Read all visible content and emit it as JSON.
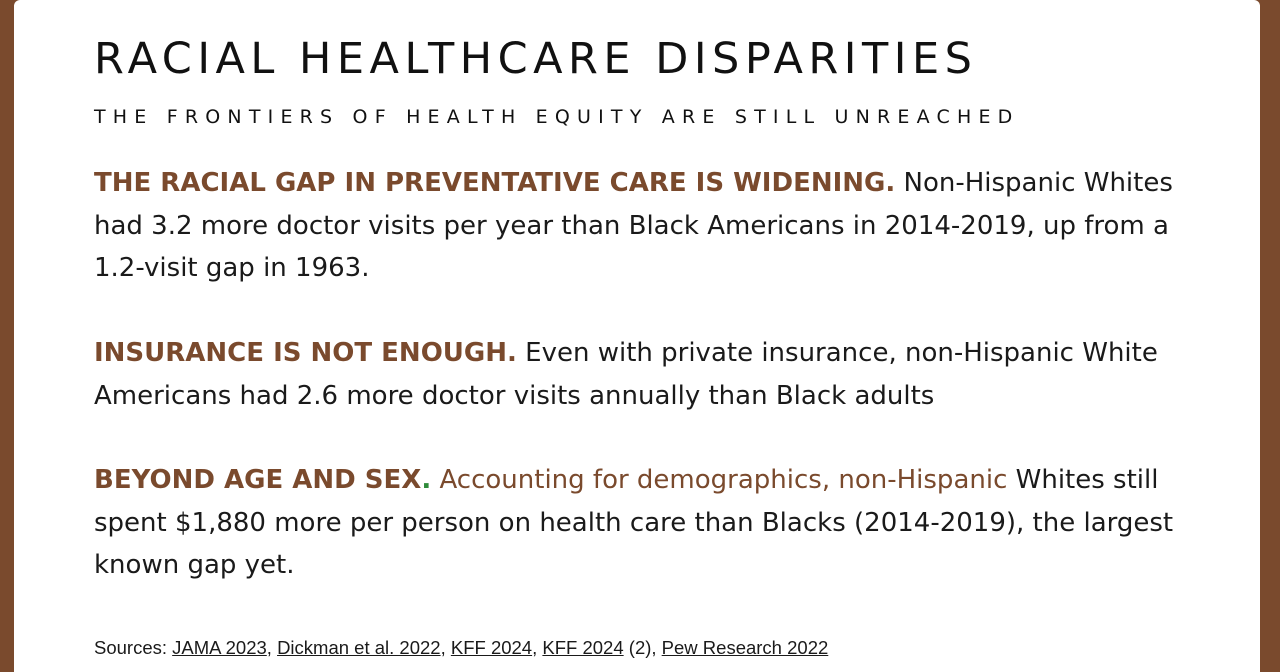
{
  "title": "RACIAL HEALTHCARE DISPARITIES",
  "subtitle": "THE FRONTIERS OF HEALTH EQUITY ARE STILL UNREACHED",
  "sections": [
    {
      "lead": "THE RACIAL GAP IN PREVENTATIVE CARE IS WIDENING.",
      "body": " Non-Hispanic Whites had 3.2 more doctor visits per year than Black Americans in 2014-2019, up from a 1.2-visit gap in 1963."
    },
    {
      "lead": "INSURANCE IS NOT ENOUGH.",
      "body": " Even with private insurance, non-Hispanic White Americans had 2.6 more doctor visits annually than Black adults"
    },
    {
      "lead": "BEYOND AGE AND SEX",
      "lead_period": ".",
      "body_highlight": " Accounting for demographics, non-Hispanic",
      "body": " Whites still spent $1,880 more per person on health care than Blacks (2014-2019), the largest known gap yet."
    }
  ],
  "sources": {
    "label": "Sources: ",
    "links": [
      "JAMA 2023",
      "Dickman et al. 2022",
      "KFF 2024",
      "KFF 2024",
      "Pew Research 2022"
    ],
    "sep": ", ",
    "suffix_4": " (2)"
  },
  "colors": {
    "accent_brown": "#7a4a2d",
    "period_green": "#2e8b3a",
    "text": "#1a1a1a"
  }
}
